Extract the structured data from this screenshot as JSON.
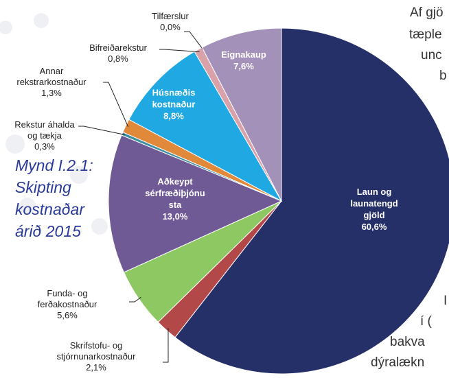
{
  "chart_data": {
    "type": "pie",
    "title": [
      "Mynd I.2.1:",
      "Skipting",
      "kostnaðar",
      "árið 2015"
    ],
    "categories": [
      "Laun og\nlaunatengd\ngjöld",
      "Skrifstofu- og\nstjórnunarkostnaður",
      "Funda- og\nferðakostnaður",
      "Aðkeypt\nsérfræðiþjónu\nsta",
      "Rekstur áhalda\nog tækja",
      "Annar\nrekstrarkostnaður",
      "Húsnæðis\nkostnaður",
      "Bifreiðarekstur",
      "Tilfærslur",
      "Eignakaup"
    ],
    "values": [
      60.6,
      2.1,
      5.6,
      13.0,
      0.3,
      1.3,
      8.8,
      0.8,
      0.0,
      7.6
    ],
    "value_labels": [
      "60,6%",
      "2,1%",
      "5,6%",
      "13,0%",
      "0,3%",
      "1,3%",
      "8,8%",
      "0,8%",
      "0,0%",
      "7,6%"
    ],
    "colors": [
      "#263068",
      "#b34848",
      "#8dc862",
      "#6f5a96",
      "#3d8fa0",
      "#e0893a",
      "#1fa8e2",
      "#d9a1a9",
      "#999999",
      "#a391b9"
    ]
  },
  "background_text": [
    "Af gjö",
    "tæple",
    "unc",
    "b",
    "I",
    "í (",
    "bakva",
    "dýralækn"
  ]
}
